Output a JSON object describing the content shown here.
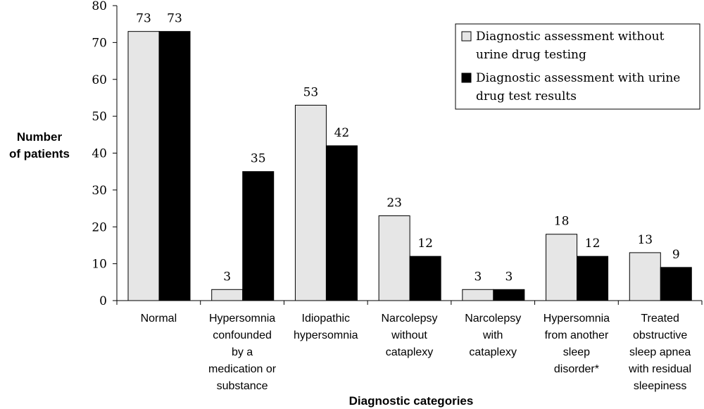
{
  "chart_data": {
    "type": "bar",
    "title": "",
    "xlabel": "Diagnostic categories",
    "ylabel": [
      "Number",
      "of patients"
    ],
    "ylim": [
      0,
      80
    ],
    "yticks": [
      0,
      10,
      20,
      30,
      40,
      50,
      60,
      70,
      80
    ],
    "grid": false,
    "legend_position": "top-right",
    "categories": [
      [
        "Normal"
      ],
      [
        "Hypersomnia",
        "confounded",
        "by a",
        "medication or",
        "substance"
      ],
      [
        "Idiopathic",
        "hypersomnia"
      ],
      [
        "Narcolepsy",
        "without",
        "cataplexy"
      ],
      [
        "Narcolepsy",
        "with",
        "cataplexy"
      ],
      [
        "Hypersomnia",
        "from another",
        "sleep",
        "disorder*"
      ],
      [
        "Treated",
        "obstructive",
        "sleep apnea",
        "with residual",
        "sleepiness"
      ]
    ],
    "series": [
      {
        "name": [
          "Diagnostic assessment without",
          "urine drug testing"
        ],
        "color": "#e6e6e6",
        "values": [
          73,
          3,
          53,
          23,
          3,
          18,
          13
        ]
      },
      {
        "name": [
          "Diagnostic assessment with urine",
          "drug test results"
        ],
        "color": "#000000",
        "values": [
          73,
          35,
          42,
          12,
          3,
          12,
          9
        ]
      }
    ]
  }
}
